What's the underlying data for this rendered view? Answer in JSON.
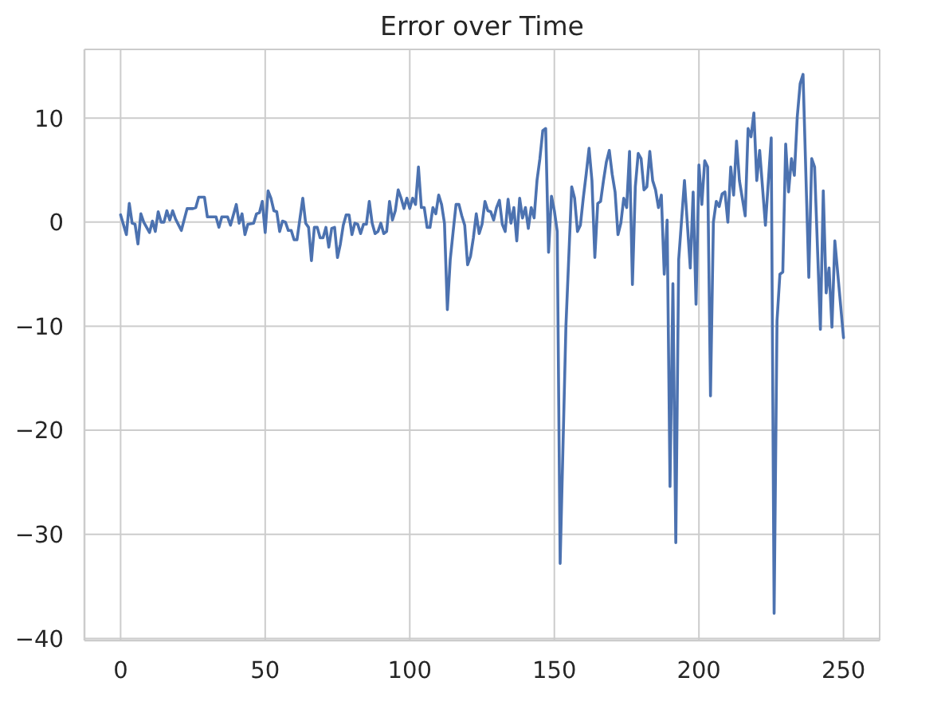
{
  "chart_data": {
    "type": "line",
    "title": "Error over Time",
    "x": [
      0,
      2,
      3,
      4,
      5,
      6,
      7,
      8,
      10,
      11,
      12,
      13,
      14,
      15,
      16,
      17,
      18,
      19,
      21,
      23,
      25,
      26,
      27,
      29,
      30,
      33,
      34,
      35,
      37,
      38,
      40,
      41,
      42,
      43,
      44,
      46,
      47,
      48,
      49,
      50,
      51,
      52,
      53,
      54,
      55,
      56,
      57,
      58,
      59,
      60,
      61,
      63,
      64,
      65,
      66,
      67,
      68,
      69,
      70,
      71,
      72,
      73,
      74,
      75,
      76,
      77,
      78,
      79,
      80,
      81,
      82,
      83,
      84,
      85,
      86,
      87,
      88,
      89,
      90,
      91,
      92,
      93,
      94,
      95,
      96,
      97,
      98,
      99,
      100,
      101,
      102,
      103,
      104,
      105,
      106,
      107,
      108,
      109,
      110,
      111,
      112,
      113,
      114,
      115,
      116,
      117,
      118,
      119,
      120,
      121,
      122,
      123,
      124,
      125,
      126,
      127,
      128,
      129,
      130,
      131,
      132,
      133,
      134,
      135,
      136,
      137,
      138,
      139,
      140,
      141,
      142,
      143,
      144,
      145,
      146,
      147,
      148,
      149,
      150,
      151,
      152,
      154,
      156,
      157,
      158,
      159,
      160,
      161,
      162,
      163,
      164,
      165,
      166,
      167,
      168,
      169,
      170,
      171,
      172,
      173,
      174,
      175,
      176,
      177,
      178,
      179,
      180,
      181,
      182,
      183,
      184,
      185,
      186,
      187,
      188,
      189,
      190,
      191,
      192,
      193,
      195,
      197,
      198,
      199,
      200,
      201,
      202,
      203,
      204,
      205,
      206,
      207,
      208,
      209,
      210,
      211,
      212,
      213,
      214,
      216,
      217,
      218,
      219,
      220,
      221,
      223,
      225,
      226,
      227,
      228,
      229,
      230,
      231,
      232,
      233,
      234,
      235,
      236,
      238,
      239,
      240,
      242,
      243,
      244,
      245,
      246,
      247,
      250
    ],
    "series": [
      {
        "color": "#4c72b0",
        "values": [
          0.7,
          -1.2,
          1.8,
          -0.1,
          -0.2,
          -2.1,
          0.8,
          0,
          -1.0,
          0.1,
          -0.9,
          1.0,
          0,
          0,
          1.1,
          0.2,
          1.1,
          0.3,
          -0.8,
          1.3,
          1.3,
          1.4,
          2.4,
          2.4,
          0.5,
          0.5,
          -0.5,
          0.5,
          0.5,
          -0.3,
          1.7,
          -0.1,
          0.8,
          -1.2,
          -0.2,
          -0.1,
          0.8,
          0.9,
          2.0,
          -1.0,
          3.0,
          2.3,
          1.1,
          1.0,
          -0.9,
          0.1,
          0.0,
          -0.8,
          -0.8,
          -1.7,
          -1.7,
          2.3,
          -0.1,
          -0.5,
          -3.7,
          -0.5,
          -0.5,
          -1.5,
          -1.5,
          -0.5,
          -2.4,
          -0.6,
          -0.5,
          -3.4,
          -2.1,
          -0.3,
          0.7,
          0.7,
          -1.2,
          -0.1,
          -0.2,
          -1.1,
          -0.2,
          -0.2,
          2.0,
          -0.1,
          -1.1,
          -0.9,
          -0.1,
          -1.1,
          -0.9,
          2.0,
          0.2,
          1.1,
          3.1,
          2.3,
          1.3,
          2.3,
          1.3,
          2.3,
          1.7,
          5.3,
          1.4,
          1.4,
          -0.5,
          -0.5,
          1.4,
          0.8,
          2.6,
          1.7,
          -0.1,
          -8.4,
          -3.6,
          -0.9,
          1.7,
          1.7,
          0.6,
          -0.3,
          -4.1,
          -3.3,
          -1.5,
          0.8,
          -1.1,
          -0.2,
          2.0,
          1.1,
          1.0,
          0.2,
          1.4,
          2.1,
          -0.2,
          -0.9,
          2.2,
          -0.1,
          1.4,
          -1.8,
          2.3,
          0.4,
          1.4,
          -0.6,
          1.4,
          0.4,
          4.0,
          6.1,
          8.8,
          9.0,
          -2.9,
          2.5,
          1.1,
          -0.9,
          -32.8,
          -10,
          3.4,
          2.3,
          -0.9,
          -0.3,
          2.3,
          4.6,
          7.1,
          4.0,
          -3.4,
          1.8,
          2.0,
          4.0,
          5.8,
          6.9,
          4.6,
          2.9,
          -1.2,
          -0.1,
          2.3,
          1.4,
          6.8,
          -6.0,
          3.4,
          6.6,
          6.1,
          3.1,
          3.4,
          6.8,
          4.0,
          3.1,
          1.4,
          2.6,
          -5.0,
          0.2,
          -25.4,
          -5.9,
          -30.8,
          -3.6,
          4.0,
          -4.4,
          2.9,
          -7.9,
          5.5,
          1.7,
          5.9,
          5.3,
          -16.7,
          0,
          2.0,
          1.5,
          2.7,
          2.9,
          0,
          5.3,
          2.6,
          7.8,
          4.0,
          0.6,
          9.0,
          8.2,
          10.5,
          4.0,
          6.9,
          -0.3,
          8.1,
          -37.6,
          -9.5,
          -5.0,
          -4.8,
          7.5,
          2.9,
          6.1,
          4.5,
          10.1,
          13.3,
          14.2,
          -5.3,
          6.1,
          5.3,
          -10.3,
          3.0,
          -6.8,
          -4.4,
          -10.1,
          -1.8,
          -11.1
        ]
      }
    ],
    "xlim": [
      -12.5,
      262.5
    ],
    "xticks": [
      0,
      50,
      100,
      150,
      200,
      250
    ],
    "ylim": [
      -40.2,
      16.6
    ],
    "yticks": [
      -40,
      -30,
      -20,
      -10,
      0,
      10
    ],
    "grid": true,
    "line_style": "solid"
  }
}
